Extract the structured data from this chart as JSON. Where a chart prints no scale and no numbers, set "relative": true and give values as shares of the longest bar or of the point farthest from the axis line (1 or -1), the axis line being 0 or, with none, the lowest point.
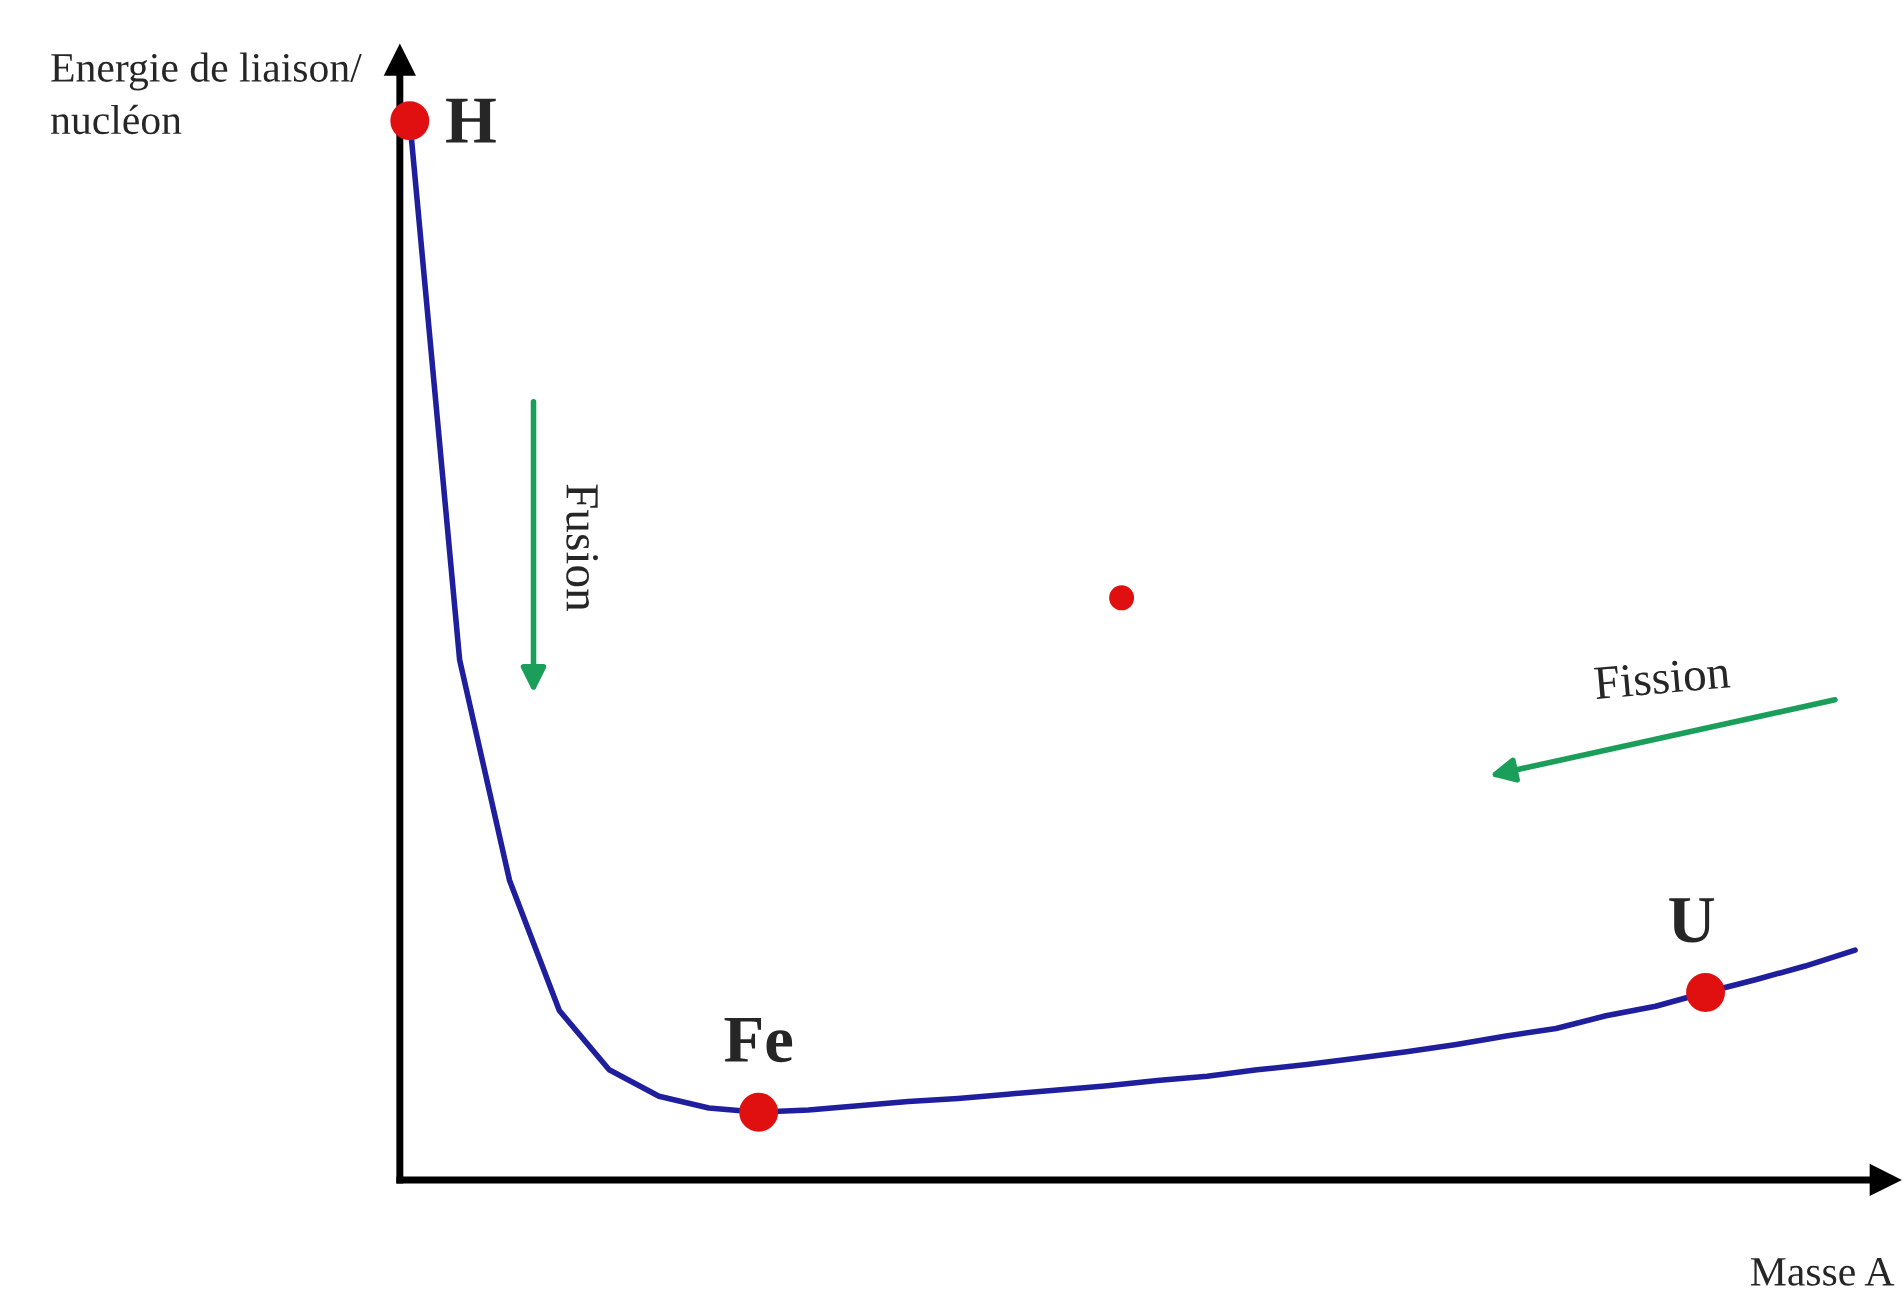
{
  "chart_data": {
    "type": "line",
    "relative": true,
    "xlabel": "Masse A",
    "ylabel": "Energie de liaison/ nucléon",
    "categories": [
      null,
      null,
      null,
      null,
      null,
      null,
      null,
      null,
      null,
      null,
      null,
      null,
      null,
      null,
      null,
      null,
      null,
      null,
      null,
      null,
      null,
      null,
      null,
      null,
      null,
      null,
      null,
      null,
      null,
      null
    ],
    "series": [
      {
        "color": "#1f1f9e",
        "values": [
          1.0,
          0.491,
          0.283,
          0.16,
          0.104,
          0.079,
          0.068,
          0.064,
          0.066,
          0.07,
          0.074,
          0.077,
          0.081,
          0.085,
          0.089,
          0.094,
          0.098,
          0.104,
          0.109,
          0.115,
          0.121,
          0.128,
          0.136,
          0.143,
          0.155,
          0.164,
          0.177,
          0.189,
          0.202,
          0.217
        ]
      }
    ],
    "annotations": [
      "H",
      "Fe",
      "U",
      "Fusion",
      "Fission"
    ]
  }
}
